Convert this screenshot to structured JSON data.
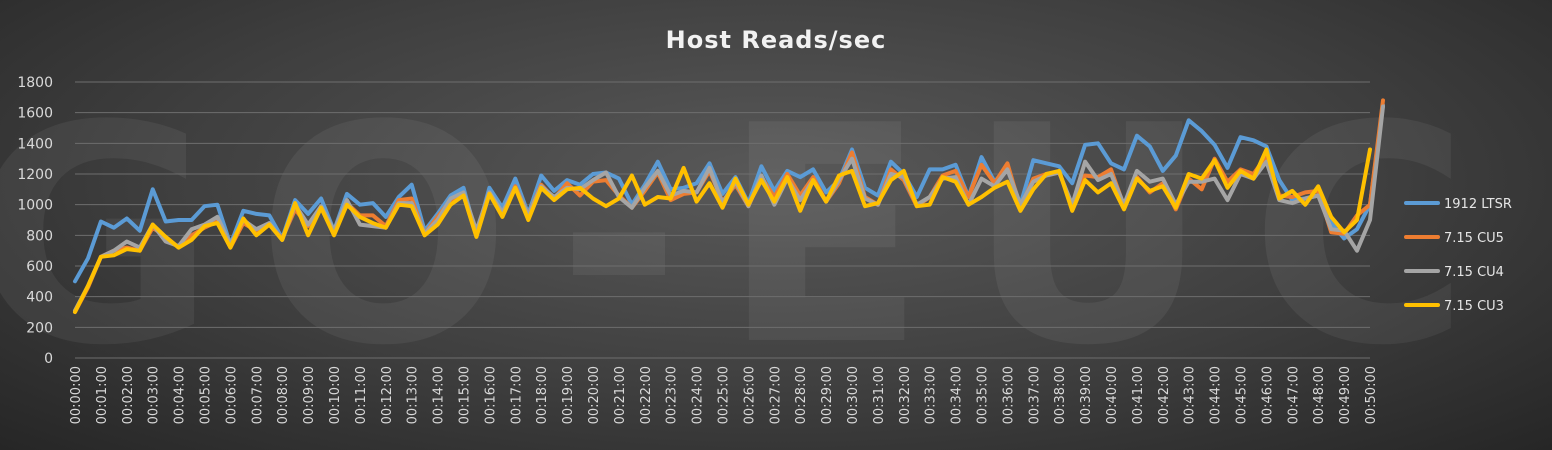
{
  "watermark": "GO-EUC",
  "chart_data": {
    "type": "line",
    "title": "Host Reads/sec",
    "xlabel": "",
    "ylabel": "",
    "ylim": [
      0,
      1800
    ],
    "yticks": [
      0,
      200,
      400,
      600,
      800,
      1000,
      1200,
      1400,
      1600,
      1800
    ],
    "grid": true,
    "legend_position": "right",
    "x_ticks": [
      "00:00:00",
      "00:01:00",
      "00:02:00",
      "00:03:00",
      "00:04:00",
      "00:05:00",
      "00:06:00",
      "00:07:00",
      "00:08:00",
      "00:09:00",
      "00:10:00",
      "00:11:00",
      "00:12:00",
      "00:13:00",
      "00:14:00",
      "00:15:00",
      "00:16:00",
      "00:17:00",
      "00:18:00",
      "00:19:00",
      "00:20:00",
      "00:21:00",
      "00:22:00",
      "00:23:00",
      "00:24:00",
      "00:25:00",
      "00:26:00",
      "00:27:00",
      "00:28:00",
      "00:29:00",
      "00:30:00",
      "00:31:00",
      "00:32:00",
      "00:33:00",
      "00:34:00",
      "00:35:00",
      "00:36:00",
      "00:37:00",
      "00:38:00",
      "00:39:00",
      "00:40:00",
      "00:41:00",
      "00:42:00",
      "00:43:00",
      "00:44:00",
      "00:45:00",
      "00:46:00",
      "00:47:00",
      "00:48:00",
      "00:49:00",
      "00:50:00"
    ],
    "points_per_minute": 2,
    "series": [
      {
        "name": "1912 LTSR",
        "color": "#5b9bd5",
        "values": [
          500,
          650,
          890,
          850,
          910,
          830,
          1100,
          890,
          900,
          900,
          990,
          1000,
          740,
          960,
          940,
          930,
          780,
          1030,
          940,
          1040,
          830,
          1070,
          1000,
          1010,
          920,
          1050,
          1130,
          830,
          940,
          1060,
          1110,
          800,
          1110,
          980,
          1170,
          940,
          1190,
          1090,
          1160,
          1130,
          1200,
          1210,
          1170,
          1000,
          1130,
          1280,
          1100,
          1110,
          1140,
          1270,
          1070,
          1180,
          1010,
          1250,
          1090,
          1220,
          1180,
          1230,
          1080,
          1160,
          1360,
          1110,
          1060,
          1280,
          1200,
          1050,
          1230,
          1230,
          1260,
          1050,
          1310,
          1150,
          1240,
          1000,
          1290,
          1270,
          1250,
          1140,
          1390,
          1400,
          1270,
          1230,
          1450,
          1380,
          1220,
          1320,
          1550,
          1480,
          1390,
          1240,
          1440,
          1420,
          1380,
          1160,
          1030,
          1040,
          1060,
          880,
          780,
          840,
          1000,
          1650
        ]
      },
      {
        "name": "7.15 CU5",
        "color": "#ed7d31",
        "values": [
          300,
          460,
          660,
          700,
          720,
          700,
          850,
          790,
          720,
          800,
          850,
          890,
          720,
          880,
          830,
          870,
          780,
          970,
          860,
          980,
          810,
          1010,
          930,
          930,
          860,
          1030,
          1040,
          810,
          920,
          1030,
          1070,
          820,
          1080,
          940,
          1120,
          930,
          1130,
          1040,
          1140,
          1060,
          1150,
          1160,
          1060,
          980,
          1090,
          1210,
          1030,
          1070,
          1080,
          1220,
          1020,
          1130,
          990,
          1180,
          1050,
          1200,
          1060,
          1180,
          1020,
          1140,
          1340,
          1050,
          1000,
          1230,
          1160,
          990,
          1050,
          1190,
          1220,
          1050,
          1260,
          1140,
          1270,
          980,
          1170,
          1200,
          1210,
          990,
          1190,
          1180,
          1230,
          990,
          1180,
          1080,
          1140,
          970,
          1170,
          1100,
          1300,
          1150,
          1230,
          1200,
          1320,
          1060,
          1050,
          1080,
          1090,
          820,
          810,
          930,
          1000,
          1680
        ]
      },
      {
        "name": "7.15 CU4",
        "color": "#a5a5a5",
        "values": [
          310,
          470,
          660,
          700,
          760,
          720,
          870,
          760,
          730,
          840,
          870,
          920,
          740,
          900,
          840,
          880,
          770,
          1000,
          870,
          990,
          830,
          1030,
          870,
          860,
          850,
          1010,
          1010,
          810,
          900,
          1040,
          1080,
          830,
          1080,
          950,
          1110,
          930,
          1120,
          1050,
          1110,
          1100,
          1160,
          1210,
          1050,
          980,
          1110,
          1220,
          1060,
          1090,
          1080,
          1240,
          1010,
          1150,
          990,
          1190,
          1000,
          1170,
          1030,
          1160,
          1020,
          1160,
          1300,
          1040,
          1000,
          1200,
          1180,
          1000,
          1050,
          1170,
          1180,
          1000,
          1170,
          1120,
          1230,
          1000,
          1150,
          1190,
          1210,
          1000,
          1280,
          1160,
          1200,
          1000,
          1220,
          1150,
          1170,
          1000,
          1150,
          1150,
          1170,
          1030,
          1200,
          1170,
          1280,
          1030,
          1010,
          1040,
          1060,
          840,
          830,
          700,
          900,
          1640
        ]
      },
      {
        "name": "7.15 CU3",
        "color": "#ffc000",
        "values": [
          300,
          470,
          660,
          670,
          710,
          700,
          870,
          790,
          720,
          770,
          860,
          880,
          720,
          910,
          800,
          870,
          770,
          1010,
          800,
          980,
          800,
          1000,
          920,
          880,
          850,
          1000,
          990,
          800,
          870,
          1000,
          1060,
          790,
          1070,
          920,
          1110,
          900,
          1110,
          1030,
          1100,
          1110,
          1040,
          990,
          1040,
          1190,
          1000,
          1050,
          1040,
          1240,
          1020,
          1140,
          980,
          1170,
          1000,
          1160,
          1020,
          1180,
          960,
          1160,
          1020,
          1190,
          1220,
          990,
          1010,
          1160,
          1220,
          990,
          1000,
          1180,
          1150,
          1000,
          1050,
          1110,
          1150,
          960,
          1100,
          1200,
          1220,
          960,
          1160,
          1080,
          1140,
          970,
          1170,
          1090,
          1120,
          980,
          1200,
          1170,
          1290,
          1110,
          1220,
          1170,
          1360,
          1040,
          1090,
          1000,
          1120,
          920,
          820,
          900,
          1360
        ]
      }
    ]
  }
}
